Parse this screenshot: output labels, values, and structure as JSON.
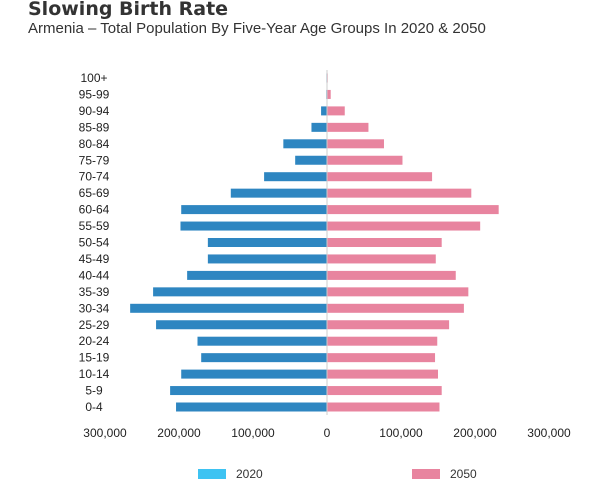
{
  "header": {
    "title": "Slowing Birth Rate",
    "subtitle": "Armenia – Total Population By Five-Year Age Groups In 2020 & 2050"
  },
  "chart_data": {
    "type": "bar",
    "orientation": "horizontal",
    "categories": [
      "100+",
      "95-99",
      "90-94",
      "85-89",
      "80-84",
      "75-79",
      "70-74",
      "65-69",
      "60-64",
      "55-59",
      "50-54",
      "45-49",
      "40-44",
      "35-39",
      "30-34",
      "25-29",
      "20-24",
      "15-19",
      "10-14",
      "5-9",
      "0-4"
    ],
    "series": [
      {
        "name": "2020",
        "color": "#2e86c1",
        "legend_color": "#3ec3f2",
        "direction": "left",
        "values": [
          200,
          1000,
          8000,
          21000,
          59000,
          43000,
          85000,
          130000,
          197000,
          198000,
          161000,
          161000,
          189000,
          235000,
          266000,
          231000,
          175000,
          170000,
          197000,
          212000,
          204000
        ]
      },
      {
        "name": "2050",
        "color": "#e8849f",
        "legend_color": "#e8849f",
        "direction": "right",
        "values": [
          1000,
          5000,
          24000,
          56000,
          77000,
          102000,
          142000,
          195000,
          232000,
          207000,
          155000,
          147000,
          174000,
          191000,
          185000,
          165000,
          149000,
          146000,
          150000,
          155000,
          152000
        ]
      }
    ],
    "xlim": [
      -300000,
      300000
    ],
    "x_ticks": [
      -300000,
      -200000,
      -100000,
      0,
      100000,
      200000,
      300000
    ],
    "x_tick_labels": [
      "300,000",
      "200,000",
      "100,000",
      "0",
      "100,000",
      "200,000",
      "300,000"
    ],
    "xlabel": "",
    "ylabel": "",
    "grid": false,
    "legend_placement": "bottom"
  }
}
